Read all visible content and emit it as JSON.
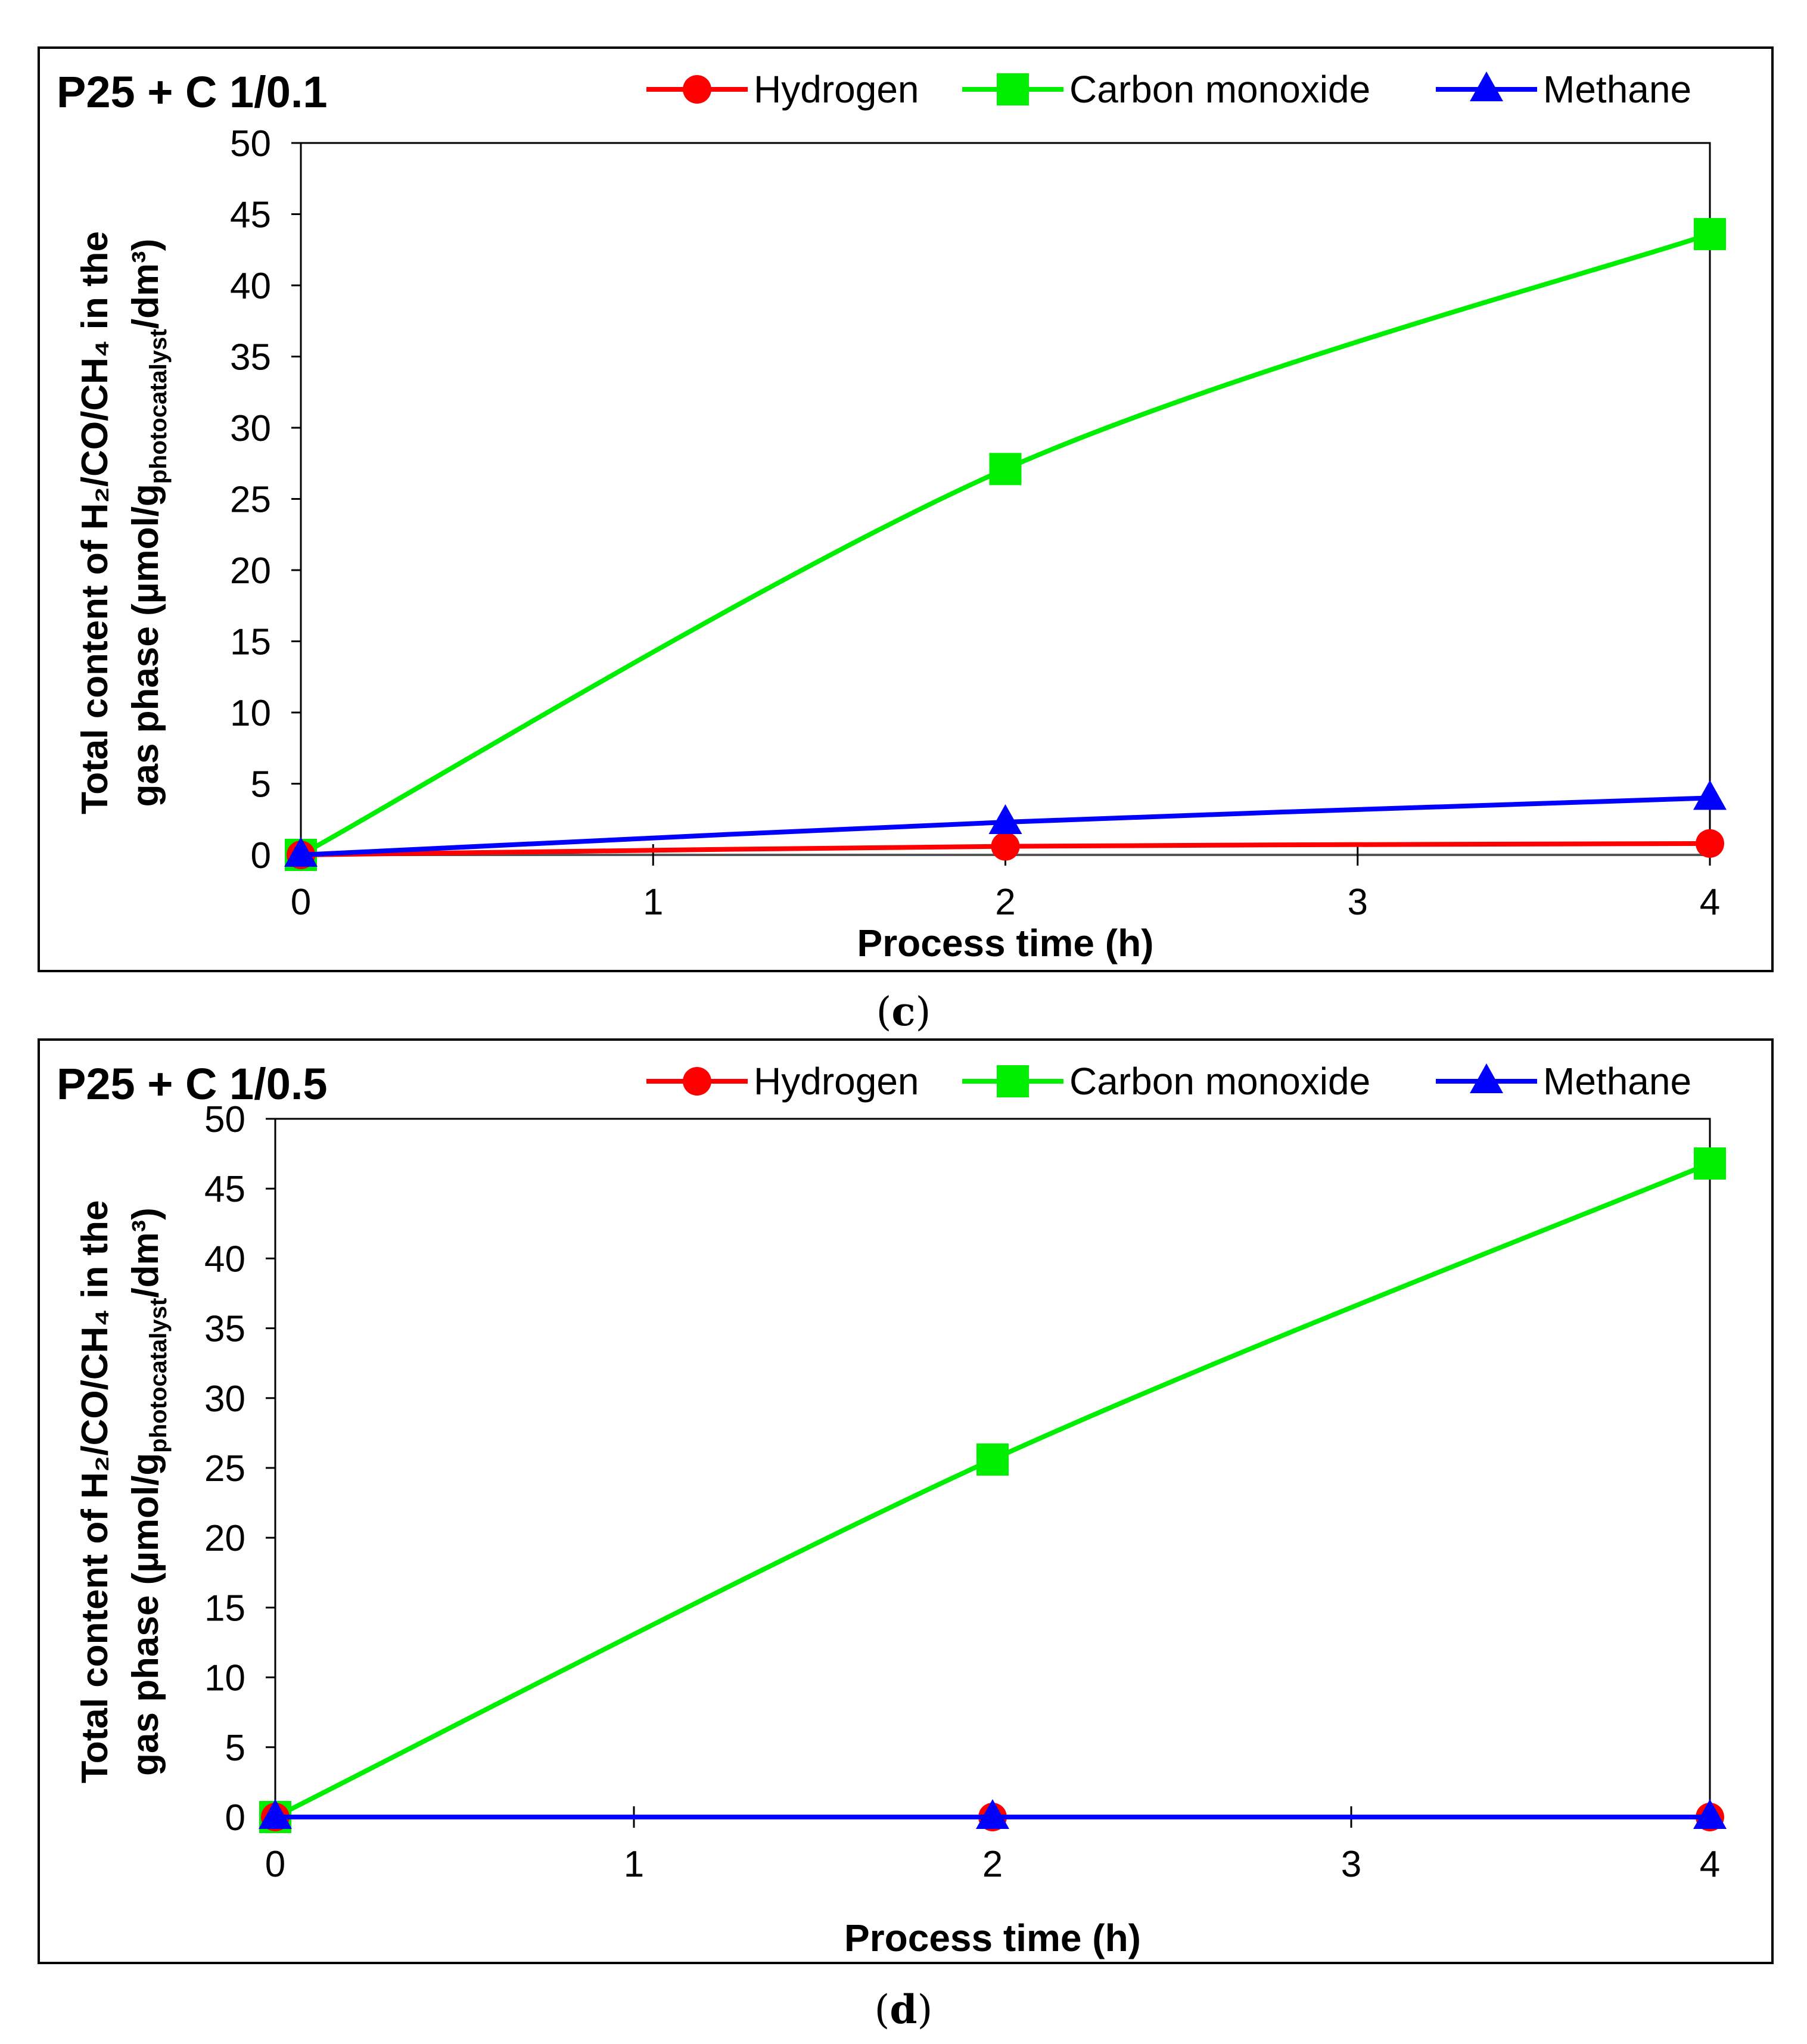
{
  "figure": {
    "panels": [
      {
        "id": "c",
        "caption_open": "(",
        "caption_letter": "c",
        "caption_close": ")"
      },
      {
        "id": "d",
        "caption_open": "(",
        "caption_letter": "d",
        "caption_close": ")"
      }
    ]
  },
  "chart_data": [
    {
      "type": "line",
      "title": "P25 + C 1/0.1",
      "xlabel": "Process time (h)",
      "ylabel_line1": "Total content of H₂/CO/CH₄ in the",
      "ylabel_line2": "gas phase (µmol/g",
      "ylabel_sub": "photocatalyst",
      "ylabel_tail": "/dm³)",
      "xlim": [
        0,
        4
      ],
      "ylim": [
        0,
        50
      ],
      "xticks": [
        0,
        1,
        2,
        3,
        4
      ],
      "yticks": [
        0,
        5,
        10,
        15,
        20,
        25,
        30,
        35,
        40,
        45,
        50
      ],
      "legend_position": "top",
      "series": [
        {
          "name": "Hydrogen",
          "color": "#ff0000",
          "marker": "circle",
          "x": [
            0,
            2,
            4
          ],
          "values": [
            0,
            0.6,
            0.8
          ]
        },
        {
          "name": "Carbon monoxide",
          "color": "#00ee00",
          "marker": "square",
          "x": [
            0,
            2,
            4
          ],
          "values": [
            0,
            27.1,
            43.6
          ]
        },
        {
          "name": "Methane",
          "color": "#0000ff",
          "marker": "triangle",
          "x": [
            0,
            2,
            4
          ],
          "values": [
            0,
            2.3,
            4.0
          ]
        }
      ]
    },
    {
      "type": "line",
      "title": "P25 + C 1/0.5",
      "xlabel": "Process time (h)",
      "ylabel_line1": "Total content of H₂/CO/CH₄ in the",
      "ylabel_line2": "gas phase (µmol/g",
      "ylabel_sub": "photocatalyst",
      "ylabel_tail": "/dm³)",
      "xlim": [
        0,
        4
      ],
      "ylim": [
        0,
        50
      ],
      "xticks": [
        0,
        1,
        2,
        3,
        4
      ],
      "yticks": [
        0,
        5,
        10,
        15,
        20,
        25,
        30,
        35,
        40,
        45,
        50
      ],
      "legend_position": "top",
      "series": [
        {
          "name": "Hydrogen",
          "color": "#ff0000",
          "marker": "circle",
          "x": [
            0,
            2,
            4
          ],
          "values": [
            0,
            0,
            0
          ]
        },
        {
          "name": "Carbon monoxide",
          "color": "#00ee00",
          "marker": "square",
          "x": [
            0,
            2,
            4
          ],
          "values": [
            0,
            25.6,
            46.8
          ]
        },
        {
          "name": "Methane",
          "color": "#0000ff",
          "marker": "triangle",
          "x": [
            0,
            2,
            4
          ],
          "values": [
            0,
            0,
            0
          ]
        }
      ]
    }
  ]
}
